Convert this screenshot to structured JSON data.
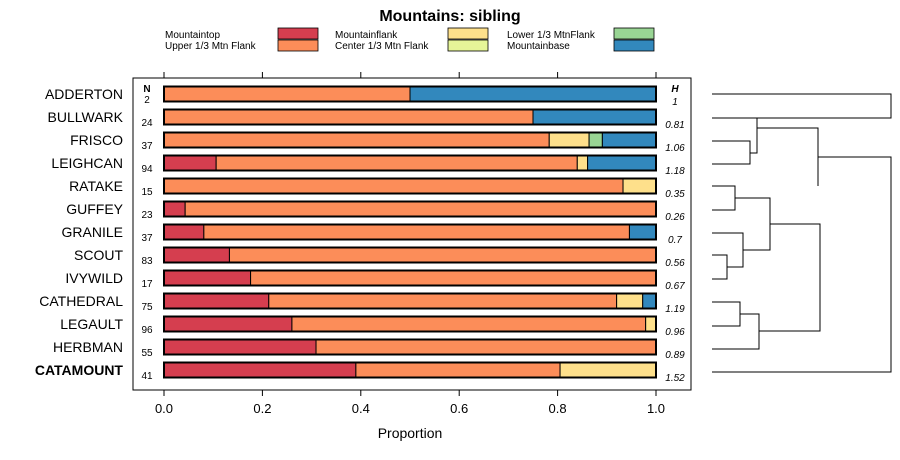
{
  "chart_data": {
    "type": "bar",
    "orientation": "horizontal",
    "stacked": true,
    "title": "Mountains: sibling",
    "xlabel": "Proportion",
    "ylabel": "",
    "xlim": [
      0,
      1
    ],
    "xticks": [
      "0.0",
      "0.2",
      "0.4",
      "0.6",
      "0.8",
      "1.0"
    ],
    "n_header": "N",
    "h_header": "H",
    "legend": [
      {
        "name": "Mountaintop",
        "color": "#d53e4f"
      },
      {
        "name": "Upper 1/3 Mtn Flank",
        "color": "#fc8d59"
      },
      {
        "name": "Mountainflank",
        "color": "#fee08b"
      },
      {
        "name": "Center 1/3 Mtn Flank",
        "color": "#e6f598"
      },
      {
        "name": "Lower 1/3 MtnFlank",
        "color": "#99d594"
      },
      {
        "name": "Mountainbase",
        "color": "#3288bd"
      }
    ],
    "categories": [
      {
        "label": "ADDERTON",
        "n": "2",
        "h": "1",
        "bold": false,
        "values": [
          0,
          0.5,
          0,
          0,
          0,
          0.5
        ]
      },
      {
        "label": "BULLWARK",
        "n": "24",
        "h": "0.81",
        "bold": false,
        "values": [
          0,
          0.75,
          0,
          0,
          0,
          0.25
        ]
      },
      {
        "label": "FRISCO",
        "n": "37",
        "h": "1.06",
        "bold": false,
        "values": [
          0,
          0.783,
          0.081,
          0,
          0.027,
          0.109
        ]
      },
      {
        "label": "LEIGHCAN",
        "n": "94",
        "h": "1.18",
        "bold": false,
        "values": [
          0.106,
          0.734,
          0.021,
          0,
          0,
          0.139
        ]
      },
      {
        "label": "RATAKE",
        "n": "15",
        "h": "0.35",
        "bold": false,
        "values": [
          0,
          0.933,
          0.067,
          0,
          0,
          0
        ]
      },
      {
        "label": "GUFFEY",
        "n": "23",
        "h": "0.26",
        "bold": false,
        "values": [
          0.043,
          0.957,
          0,
          0,
          0,
          0
        ]
      },
      {
        "label": "GRANILE",
        "n": "37",
        "h": "0.7",
        "bold": false,
        "values": [
          0.081,
          0.865,
          0,
          0,
          0,
          0.054
        ]
      },
      {
        "label": "SCOUT",
        "n": "83",
        "h": "0.56",
        "bold": false,
        "values": [
          0.133,
          0.867,
          0,
          0,
          0,
          0
        ]
      },
      {
        "label": "IVYWILD",
        "n": "17",
        "h": "0.67",
        "bold": false,
        "values": [
          0.176,
          0.824,
          0,
          0,
          0,
          0
        ]
      },
      {
        "label": "CATHEDRAL",
        "n": "75",
        "h": "1.19",
        "bold": false,
        "values": [
          0.213,
          0.707,
          0.053,
          0,
          0,
          0.027
        ]
      },
      {
        "label": "LEGAULT",
        "n": "96",
        "h": "0.96",
        "bold": false,
        "values": [
          0.26,
          0.719,
          0.021,
          0,
          0,
          0
        ]
      },
      {
        "label": "HERBMAN",
        "n": "55",
        "h": "0.89",
        "bold": false,
        "values": [
          0.309,
          0.691,
          0,
          0,
          0,
          0
        ]
      },
      {
        "label": "CATAMOUNT",
        "n": "41",
        "h": "1.52",
        "bold": true,
        "values": [
          0.39,
          0.415,
          0.195,
          0,
          0,
          0
        ]
      }
    ]
  }
}
